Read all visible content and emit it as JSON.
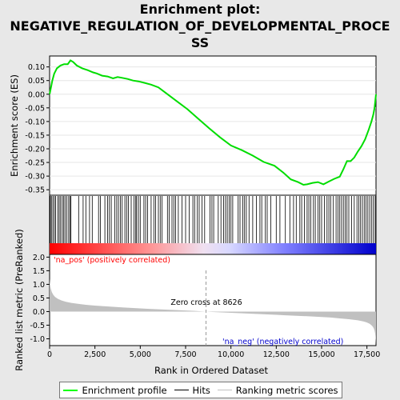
{
  "title": "Enrichment plot: NEGATIVE_REGULATION_OF_DEVELOPMENTAL_PROCESS",
  "title_lines": [
    "Enrichment plot:",
    "NEGATIVE_REGULATION_OF_DEVELOPMENTAL_PROCE",
    "SS"
  ],
  "chart_data": [
    {
      "type": "line",
      "name": "enrichment-profile",
      "ylabel": "Enrichment score (ES)",
      "ylim": [
        -0.37,
        0.14
      ],
      "xlim": [
        0,
        18000
      ],
      "yticks": [
        0.1,
        0.05,
        0.0,
        -0.05,
        -0.1,
        -0.15,
        -0.2,
        -0.25,
        -0.3,
        -0.35
      ],
      "ytick_labels": [
        "0.10",
        "0.05",
        "0.00",
        "-0.05",
        "-0.10",
        "-0.15",
        "-0.20",
        "-0.25",
        "-0.30",
        "-0.35"
      ],
      "series": [
        {
          "name": "Enrichment profile",
          "color": "#00ff00",
          "x": [
            0,
            60,
            150,
            250,
            400,
            600,
            800,
            1000,
            1150,
            1300,
            1500,
            1800,
            2100,
            2400,
            2600,
            2900,
            3200,
            3500,
            3750,
            4000,
            4300,
            4600,
            4900,
            5200,
            5600,
            6000,
            6400,
            7000,
            7600,
            8200,
            8800,
            9400,
            10000,
            10600,
            11200,
            11800,
            12400,
            12900,
            13300,
            13700,
            14000,
            14200,
            14500,
            14800,
            15100,
            15400,
            15700,
            16000,
            16200,
            16400,
            16600,
            16800,
            17000,
            17200,
            17400,
            17600,
            17750,
            17850,
            17920,
            17960,
            17999
          ],
          "y": [
            0.0,
            0.02,
            0.05,
            0.075,
            0.095,
            0.105,
            0.11,
            0.11,
            0.124,
            0.118,
            0.105,
            0.095,
            0.088,
            0.08,
            0.076,
            0.068,
            0.065,
            0.058,
            0.063,
            0.06,
            0.056,
            0.05,
            0.047,
            0.042,
            0.035,
            0.025,
            0.005,
            -0.025,
            -0.055,
            -0.09,
            -0.125,
            -0.158,
            -0.188,
            -0.205,
            -0.225,
            -0.248,
            -0.262,
            -0.288,
            -0.312,
            -0.322,
            -0.332,
            -0.33,
            -0.325,
            -0.322,
            -0.33,
            -0.32,
            -0.31,
            -0.302,
            -0.275,
            -0.245,
            -0.245,
            -0.232,
            -0.21,
            -0.19,
            -0.165,
            -0.13,
            -0.1,
            -0.075,
            -0.05,
            -0.025,
            0.0
          ]
        }
      ]
    },
    {
      "type": "hits",
      "name": "hits-strip",
      "series": [
        {
          "name": "Hits",
          "color": "#000000",
          "x": [
            40,
            100,
            180,
            260,
            330,
            450,
            530,
            610,
            700,
            780,
            850,
            950,
            1050,
            1120,
            1180,
            1600,
            1850,
            2000,
            2200,
            2350,
            2700,
            2800,
            3050,
            3200,
            3300,
            3400,
            3600,
            3700,
            3800,
            3900,
            4000,
            4150,
            4250,
            4350,
            4500,
            4650,
            4750,
            4800,
            4900,
            5000,
            5200,
            5300,
            5400,
            5600,
            5750,
            5850,
            6000,
            6100,
            6200,
            6500,
            6600,
            6750,
            6850,
            6950,
            7100,
            7300,
            7500,
            7700,
            7900,
            8000,
            8150,
            8250,
            8400,
            8550,
            8850,
            8950,
            9050,
            9300,
            9450,
            9600,
            9700,
            9800,
            9900,
            10000,
            10100,
            10400,
            10500,
            10650,
            10750,
            10850,
            11000,
            11200,
            11400,
            11600,
            11700,
            11900,
            12000,
            12200,
            12500,
            12700,
            13000,
            13250,
            13450,
            13600,
            13800,
            13900,
            14050,
            14200,
            14300,
            14400,
            14550,
            14650,
            14800,
            14900,
            15000,
            15150,
            15300,
            15400,
            15500,
            15650,
            15800,
            15900,
            16000,
            16100,
            16200,
            16300,
            16400,
            16500,
            16650,
            16800,
            16950,
            17050,
            17150,
            17250,
            17350,
            17450,
            17550,
            17650,
            17750,
            17850,
            17950
          ]
        }
      ]
    },
    {
      "type": "area",
      "name": "ranked-list-metric",
      "xlabel": "Rank in Ordered Dataset",
      "ylabel": "Ranked list metric (PreRanked)",
      "ylim": [
        -1.25,
        2.1
      ],
      "xlim": [
        0,
        18000
      ],
      "xticks": [
        0,
        2500,
        5000,
        7500,
        10000,
        12500,
        15000,
        17500
      ],
      "xtick_labels": [
        "0",
        "2,500",
        "5,000",
        "7,500",
        "10,000",
        "12,500",
        "15,000",
        "17,500"
      ],
      "yticks": [
        2.0,
        1.5,
        1.0,
        0.5,
        0.0,
        -0.5,
        -1.0
      ],
      "ytick_labels": [
        "2.0",
        "1.5",
        "1.0",
        "0.5",
        "0.0",
        "-0.5",
        "-1.0"
      ],
      "series": [
        {
          "name": "Ranking metric scores",
          "color": "#c0c0c0",
          "x": [
            0,
            20,
            60,
            120,
            200,
            300,
            450,
            650,
            900,
            1200,
            1600,
            2000,
            2500,
            3000,
            3500,
            4000,
            4500,
            5000,
            5500,
            6000,
            6500,
            7000,
            7500,
            8000,
            8626,
            9000,
            9500,
            10000,
            10500,
            11000,
            11500,
            12000,
            12500,
            13000,
            13500,
            14000,
            14500,
            15000,
            15500,
            16000,
            16500,
            17000,
            17300,
            17500,
            17650,
            17750,
            17830,
            17880,
            17920,
            17950,
            17970,
            17985,
            17999
          ],
          "y": [
            1.2,
            1.0,
            0.85,
            0.72,
            0.62,
            0.54,
            0.47,
            0.41,
            0.36,
            0.32,
            0.28,
            0.25,
            0.22,
            0.195,
            0.175,
            0.155,
            0.135,
            0.115,
            0.1,
            0.085,
            0.07,
            0.055,
            0.04,
            0.025,
            0.0,
            -0.015,
            -0.03,
            -0.045,
            -0.06,
            -0.075,
            -0.09,
            -0.105,
            -0.12,
            -0.135,
            -0.15,
            -0.165,
            -0.18,
            -0.2,
            -0.22,
            -0.25,
            -0.28,
            -0.32,
            -0.36,
            -0.4,
            -0.45,
            -0.5,
            -0.56,
            -0.62,
            -0.7,
            -0.8,
            -0.9,
            -1.05,
            -1.2
          ]
        }
      ],
      "annotations": {
        "zero_cross": "Zero cross at 8626",
        "zero_cross_rank": 8626,
        "pos_label": "'na_pos' (positively correlated)",
        "neg_label": "'na_neg' (negatively correlated)",
        "pos_color": "#ff0000",
        "neg_color": "#0000cc"
      }
    }
  ],
  "legend": {
    "enrichment_label": "Enrichment profile",
    "hits_label": "Hits",
    "ranking_label": "Ranking metric scores",
    "enrichment_color": "#00ff00",
    "hits_color": "#000000",
    "ranking_color": "#c0c0c0"
  }
}
